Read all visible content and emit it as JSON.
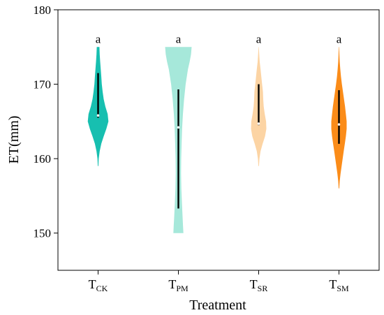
{
  "chart_data": {
    "type": "violin",
    "xlabel": "Treatment",
    "ylabel": "ET(mm)",
    "ylim": [
      145,
      180
    ],
    "yticks": [
      150,
      160,
      170,
      180
    ],
    "grid": false,
    "categories": [
      {
        "main": "T",
        "sub": "CK"
      },
      {
        "main": "T",
        "sub": "PM"
      },
      {
        "main": "T",
        "sub": "SR"
      },
      {
        "main": "T",
        "sub": "SM"
      }
    ],
    "series": [
      {
        "category": "CK",
        "color": "#17bfb0",
        "min": 159,
        "max": 175,
        "q1": 165.5,
        "q3": 171.5,
        "median": 165.8,
        "letter": "a",
        "density": [
          [
            159,
            0.02
          ],
          [
            160,
            0.05
          ],
          [
            161,
            0.12
          ],
          [
            162,
            0.24
          ],
          [
            163,
            0.42
          ],
          [
            164,
            0.62
          ],
          [
            165,
            0.78
          ],
          [
            166,
            0.72
          ],
          [
            167,
            0.55
          ],
          [
            168,
            0.42
          ],
          [
            169,
            0.34
          ],
          [
            170,
            0.28
          ],
          [
            171,
            0.24
          ],
          [
            172,
            0.2
          ],
          [
            173,
            0.16
          ],
          [
            174,
            0.12
          ],
          [
            175,
            0.1
          ]
        ]
      },
      {
        "category": "PM",
        "color": "#a6e8da",
        "min": 150,
        "max": 175,
        "q1": 153.3,
        "q3": 169.3,
        "median": 164.2,
        "letter": "a",
        "density": [
          [
            150,
            0.38
          ],
          [
            151,
            0.35
          ],
          [
            152,
            0.32
          ],
          [
            154,
            0.27
          ],
          [
            156,
            0.22
          ],
          [
            158,
            0.2
          ],
          [
            160,
            0.21
          ],
          [
            162,
            0.24
          ],
          [
            164,
            0.28
          ],
          [
            166,
            0.34
          ],
          [
            168,
            0.43
          ],
          [
            170,
            0.55
          ],
          [
            172,
            0.72
          ],
          [
            173,
            0.85
          ],
          [
            174,
            0.95
          ],
          [
            175,
            1.0
          ]
        ]
      },
      {
        "category": "SR",
        "color": "#fcd4a4",
        "min": 159,
        "max": 175,
        "q1": 164.5,
        "q3": 170,
        "median": 164.7,
        "letter": "a",
        "density": [
          [
            159,
            0.02
          ],
          [
            160,
            0.06
          ],
          [
            161,
            0.14
          ],
          [
            162,
            0.3
          ],
          [
            163,
            0.48
          ],
          [
            164,
            0.58
          ],
          [
            165,
            0.56
          ],
          [
            166,
            0.46
          ],
          [
            167,
            0.38
          ],
          [
            168,
            0.34
          ],
          [
            169,
            0.32
          ],
          [
            170,
            0.26
          ],
          [
            171,
            0.2
          ],
          [
            172,
            0.14
          ],
          [
            173,
            0.08
          ],
          [
            174,
            0.04
          ],
          [
            175,
            0.01
          ]
        ]
      },
      {
        "category": "SM",
        "color": "#fb8c19",
        "min": 156,
        "max": 175,
        "q1": 162,
        "q3": 169.2,
        "median": 164.6,
        "letter": "a",
        "density": [
          [
            156,
            0.02
          ],
          [
            157,
            0.06
          ],
          [
            158,
            0.12
          ],
          [
            159,
            0.2
          ],
          [
            160,
            0.28
          ],
          [
            161,
            0.36
          ],
          [
            162,
            0.44
          ],
          [
            163,
            0.52
          ],
          [
            164,
            0.58
          ],
          [
            165,
            0.58
          ],
          [
            166,
            0.52
          ],
          [
            167,
            0.46
          ],
          [
            168,
            0.38
          ],
          [
            169,
            0.3
          ],
          [
            170,
            0.22
          ],
          [
            171,
            0.15
          ],
          [
            172,
            0.1
          ],
          [
            173,
            0.06
          ],
          [
            174,
            0.03
          ],
          [
            175,
            0.01
          ]
        ]
      }
    ]
  }
}
